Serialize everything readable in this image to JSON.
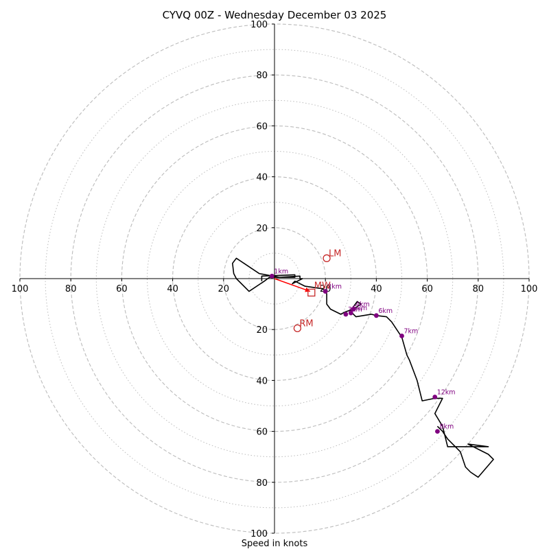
{
  "chart_data": {
    "type": "hodograph",
    "title": "CYVQ 00Z - Wednesday December 03 2025",
    "xlabel": "Speed in knots",
    "xlim": [
      -100,
      100
    ],
    "ylim": [
      -100,
      100
    ],
    "ring_major": [
      20,
      40,
      60,
      80,
      100
    ],
    "ring_minor": [
      10,
      30,
      50,
      70,
      90
    ],
    "x_ticks": [
      "100",
      "80",
      "60",
      "40",
      "20",
      "20",
      "40",
      "60",
      "80",
      "100"
    ],
    "x_tick_values": [
      -100,
      -80,
      -60,
      -40,
      -20,
      20,
      40,
      60,
      80,
      100
    ],
    "y_ticks": [
      "100",
      "80",
      "60",
      "40",
      "20",
      "20",
      "40",
      "60",
      "80",
      "100"
    ],
    "y_tick_values": [
      100,
      80,
      60,
      40,
      20,
      -20,
      -40,
      -60,
      -80,
      -100
    ],
    "hodograph_line": {
      "color": "#000000",
      "points": [
        [
          -5,
          -1
        ],
        [
          -5,
          1
        ],
        [
          8,
          1.5
        ],
        [
          8,
          0.5
        ],
        [
          -2,
          0.5
        ],
        [
          -4,
          -1
        ],
        [
          -10,
          -5
        ],
        [
          -11,
          -4
        ],
        [
          -15,
          0
        ],
        [
          -16,
          2
        ],
        [
          -16.5,
          6
        ],
        [
          -15,
          8
        ],
        [
          -12,
          6
        ],
        [
          -6,
          2
        ],
        [
          2,
          0.5
        ],
        [
          10,
          1
        ],
        [
          10,
          0
        ],
        [
          11,
          0
        ],
        [
          7,
          -2
        ],
        [
          8,
          -1
        ],
        [
          12,
          -3
        ],
        [
          19,
          -4
        ],
        [
          20,
          -5
        ],
        [
          20.5,
          -6
        ],
        [
          20.5,
          -10
        ],
        [
          22,
          -12
        ],
        [
          26,
          -14
        ],
        [
          28,
          -13
        ],
        [
          31,
          -12
        ],
        [
          34,
          -10
        ],
        [
          32.5,
          -9
        ],
        [
          31,
          -11
        ],
        [
          30,
          -13
        ],
        [
          32,
          -15
        ],
        [
          38,
          -14
        ],
        [
          40,
          -14.5
        ],
        [
          44,
          -15
        ],
        [
          46,
          -17
        ],
        [
          48,
          -20
        ],
        [
          50,
          -23
        ],
        [
          52,
          -30
        ],
        [
          53,
          -32
        ],
        [
          56,
          -40
        ],
        [
          58,
          -48
        ],
        [
          63,
          -47
        ],
        [
          66,
          -47
        ],
        [
          63,
          -53
        ],
        [
          66,
          -58
        ],
        [
          68,
          -66
        ],
        [
          78,
          -66
        ],
        [
          84,
          -66
        ],
        [
          76,
          -65
        ],
        [
          84,
          -69
        ],
        [
          86,
          -71
        ],
        [
          80,
          -78
        ],
        [
          77,
          -76
        ],
        [
          75,
          -74
        ],
        [
          73,
          -68
        ],
        [
          68,
          -63
        ],
        [
          66,
          -60
        ],
        [
          64,
          -58
        ]
      ]
    },
    "height_markers": [
      {
        "label": "1km",
        "u": -1,
        "v": 1
      },
      {
        "label": "2km",
        "u": 20,
        "v": -5
      },
      {
        "label": "3km",
        "u": 28,
        "v": -14
      },
      {
        "label": "4km",
        "u": 31,
        "v": -12
      },
      {
        "label": "5km",
        "u": 30,
        "v": -13.5
      },
      {
        "label": "6km",
        "u": 40,
        "v": -14.5
      },
      {
        "label": "7km",
        "u": 50,
        "v": -22.5
      },
      {
        "label": "12km",
        "u": 63,
        "v": -46.5
      },
      {
        "label": "8km",
        "u": 64,
        "v": -60
      }
    ],
    "storm_motion": [
      {
        "label": "LM",
        "u": 20.5,
        "v": 8
      },
      {
        "label": "RM",
        "u": 9,
        "v": -19.5
      },
      {
        "label": "MW",
        "u": 14.5,
        "v": -5.5
      }
    ],
    "shear_vector": {
      "from": [
        0,
        0
      ],
      "to": [
        14,
        -5
      ],
      "color": "#ff0000"
    }
  },
  "colors": {
    "grid": "#bbbbbb",
    "axis": "#000000",
    "marker": "#800080",
    "motion": "#c62828",
    "shear": "#ff0000"
  }
}
